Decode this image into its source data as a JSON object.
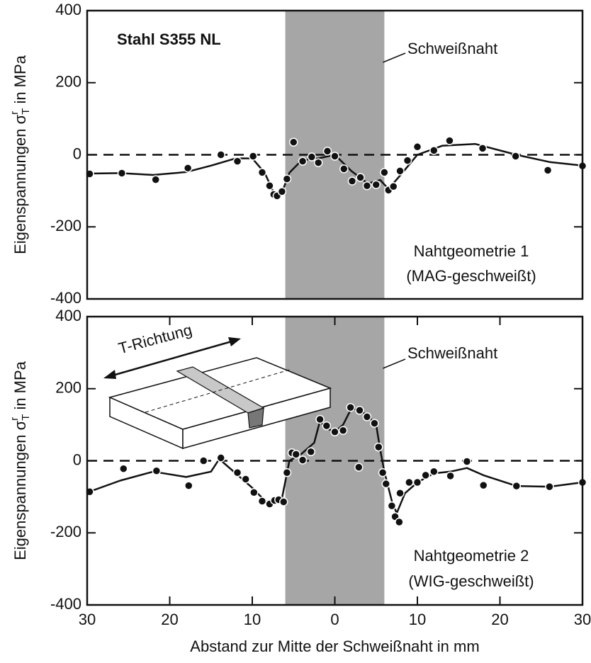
{
  "chart_data": [
    {
      "type": "scatter",
      "xlim": [
        -30,
        30
      ],
      "ylim": [
        -400,
        400
      ],
      "yticks": [
        400,
        200,
        0,
        -200,
        -400
      ],
      "ylabel": {
        "main": "Eigenspannungen σ",
        "sup": "r",
        "sub": "T",
        "rest": " in MPa"
      },
      "weld_zone": [
        -6,
        6
      ],
      "hline": 0,
      "annotations": [
        "Stahl S355 NL",
        "Schweißnaht",
        "Nahtgeometrie 1",
        "(MAG-geschweißt)"
      ],
      "points": {
        "x": [
          -29.7,
          -25.8,
          -21.7,
          -17.8,
          -13.8,
          -11.8,
          -9.9,
          -8.8,
          -7.9,
          -7.4,
          -7.0,
          -6.4,
          -5.8,
          -5.0,
          -3.9,
          -2.8,
          -2.0,
          -0.9,
          0,
          1.1,
          2.1,
          3.1,
          3.9,
          5.0,
          6.0,
          6.5,
          7.1,
          7.9,
          8.8,
          10.0,
          12.0,
          13.9,
          17.9,
          21.9,
          25.8,
          30.0
        ],
        "values": [
          -53,
          -51,
          -69,
          -37,
          0,
          -18,
          -4,
          -49,
          -86,
          -110,
          -114,
          -102,
          -67,
          35,
          -18,
          -6,
          -22,
          10,
          -4,
          -39,
          -73,
          -63,
          -86,
          -83,
          -49,
          -98,
          -88,
          -45,
          -16,
          22,
          12,
          39,
          18,
          -4,
          -43,
          -31
        ]
      },
      "curve": {
        "x": [
          -30,
          -26,
          -22,
          -18,
          -15,
          -12,
          -10,
          -8.5,
          -7.5,
          -6.5,
          -5.5,
          -4,
          -2,
          0,
          2,
          4,
          5.5,
          6.5,
          8,
          10,
          13,
          17,
          22,
          26,
          30
        ],
        "values": [
          -52,
          -51,
          -56,
          -48,
          -30,
          -10,
          -10,
          -50,
          -100,
          -110,
          -50,
          -15,
          -10,
          0,
          -45,
          -80,
          -70,
          -95,
          -55,
          0,
          25,
          30,
          0,
          -20,
          -30
        ]
      }
    },
    {
      "type": "scatter",
      "xlim": [
        -30,
        30
      ],
      "ylim": [
        -400,
        400
      ],
      "yticks": [
        400,
        200,
        0,
        -200,
        -400
      ],
      "xticks": [
        {
          "value": -30,
          "label": "30"
        },
        {
          "value": -20,
          "label": "20"
        },
        {
          "value": -10,
          "label": "10"
        },
        0,
        10,
        20,
        30
      ],
      "xlabel": "Abstand zur Mitte der Schweißnaht in mm",
      "ylabel": {
        "main": "Eigenspannungen σ",
        "sup": "r",
        "sub": "T",
        "rest": " in MPa"
      },
      "weld_zone": [
        -6,
        6
      ],
      "hline": 0,
      "annotations": [
        "T-Richtung",
        "Schweißnaht",
        "Nahtgeometrie 2",
        "(WIG-geschweißt)"
      ],
      "points": {
        "x": [
          -29.7,
          -25.6,
          -21.6,
          -17.7,
          -15.9,
          -13.8,
          -11.8,
          -10.8,
          -9.8,
          -8.8,
          -7.9,
          -7.3,
          -6.8,
          -6.2,
          -5.8,
          -5.2,
          -4.7,
          -3.9,
          -2.9,
          -1.8,
          -1.0,
          0,
          1.0,
          1.9,
          2.9,
          3.0,
          3.9,
          4.8,
          5.3,
          5.8,
          6.2,
          6.9,
          7.3,
          7.8,
          7.9,
          9.0,
          10.0,
          11.0,
          12.0,
          14.0,
          16.0,
          18.0,
          22.0,
          26.0,
          30.0
        ],
        "values": [
          -86,
          -22,
          -28,
          -69,
          0,
          8,
          -33,
          -51,
          -88,
          -112,
          -120,
          -110,
          -108,
          -114,
          -33,
          22,
          18,
          2,
          25,
          115,
          97,
          80,
          84,
          148,
          -18,
          140,
          122,
          104,
          38,
          -33,
          -64,
          -125,
          -155,
          -170,
          -90,
          -60,
          -60,
          -40,
          -30,
          -42,
          -2,
          -68,
          -70,
          -72,
          -60
        ]
      },
      "curve": {
        "x": [
          -30,
          -26,
          -22,
          -18,
          -15,
          -14,
          -12,
          -10,
          -8.5,
          -7.5,
          -6.5,
          -5.5,
          -4,
          -2.5,
          -1.8,
          -1,
          0,
          1,
          2,
          3,
          4,
          5,
          5.5,
          6,
          7,
          7.5,
          8.5,
          10,
          12,
          14,
          16,
          18,
          22,
          26,
          30
        ],
        "values": [
          -88,
          -55,
          -30,
          -45,
          -30,
          5,
          -35,
          -75,
          -110,
          -120,
          -115,
          0,
          20,
          50,
          110,
          90,
          80,
          100,
          145,
          140,
          125,
          100,
          30,
          -30,
          -120,
          -145,
          -90,
          -60,
          -35,
          -30,
          -20,
          -40,
          -70,
          -72,
          -60
        ]
      }
    }
  ]
}
